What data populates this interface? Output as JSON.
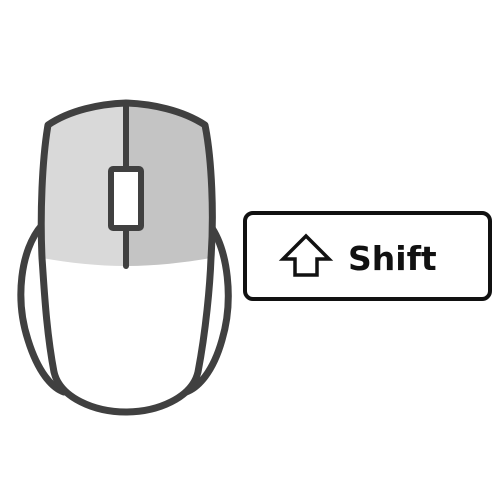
{
  "illustration": {
    "mouse": {
      "icon": "mouse-icon",
      "left_button_color": "#d9d9d9",
      "right_button_color": "#c4c4c4",
      "body_color": "#ffffff",
      "outline_color": "#404040"
    },
    "key": {
      "icon": "shift-arrow-icon",
      "label": "Shift",
      "border_color": "#111111",
      "fill_color": "#ffffff"
    }
  }
}
